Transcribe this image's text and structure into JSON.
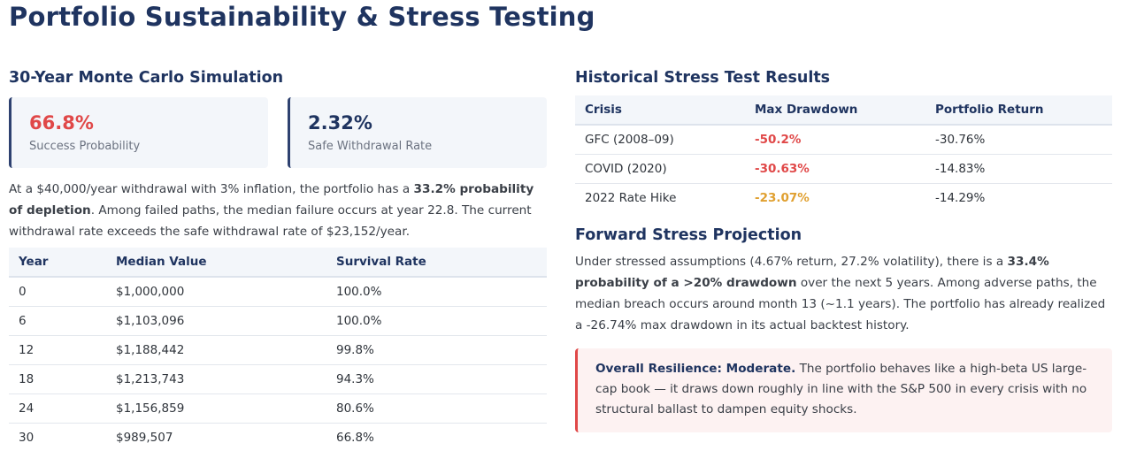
{
  "page_title": "Portfolio Sustainability & Stress Testing",
  "monte_carlo": {
    "heading": "30-Year Monte Carlo Simulation",
    "kpis": [
      {
        "value": "66.8%",
        "label": "Success Probability",
        "color": "#e04848"
      },
      {
        "value": "2.32%",
        "label": "Safe Withdrawal Rate",
        "color": "#1f3460"
      }
    ],
    "summary": {
      "p1": "At a $40,000/year withdrawal with 3% inflation, the portfolio has a ",
      "b1": "33.2% probability of depletion",
      "p2": ". Among failed paths, the median failure occurs at year 22.8. The current withdrawal rate exceeds the safe withdrawal rate of $23,152/year."
    },
    "table": {
      "headers": [
        "Year",
        "Median Value",
        "Survival Rate"
      ],
      "rows": [
        [
          "0",
          "$1,000,000",
          "100.0%"
        ],
        [
          "6",
          "$1,103,096",
          "100.0%"
        ],
        [
          "12",
          "$1,188,442",
          "99.8%"
        ],
        [
          "18",
          "$1,213,743",
          "94.3%"
        ],
        [
          "24",
          "$1,156,859",
          "80.6%"
        ],
        [
          "30",
          "$989,507",
          "66.8%"
        ]
      ]
    }
  },
  "historical": {
    "heading": "Historical Stress Test Results",
    "headers": [
      "Crisis",
      "Max Drawdown",
      "Portfolio Return"
    ],
    "rows": [
      {
        "crisis": "GFC (2008–09)",
        "drawdown": "-50.2%",
        "ret": "-30.76%",
        "severity": "red"
      },
      {
        "crisis": "COVID (2020)",
        "drawdown": "-30.63%",
        "ret": "-14.83%",
        "severity": "red"
      },
      {
        "crisis": "2022 Rate Hike",
        "drawdown": "-23.07%",
        "ret": "-14.29%",
        "severity": "orange"
      }
    ]
  },
  "forward": {
    "heading": "Forward Stress Projection",
    "p1": "Under stressed assumptions (4.67% return, 27.2% volatility), there is a ",
    "b1": "33.4% probability of a >20% drawdown",
    "p2": " over the next 5 years. Among adverse paths, the median breach occurs around month 13 (~1.1 years). The portfolio has already realized a -26.74% max drawdown in its actual backtest history."
  },
  "resilience": {
    "label": "Overall Resilience: Moderate.",
    "text": " The portfolio behaves like a high-beta US large-cap book — it draws down roughly in line with the S&P 500 in every crisis with no structural ballast to dampen equity shocks."
  }
}
